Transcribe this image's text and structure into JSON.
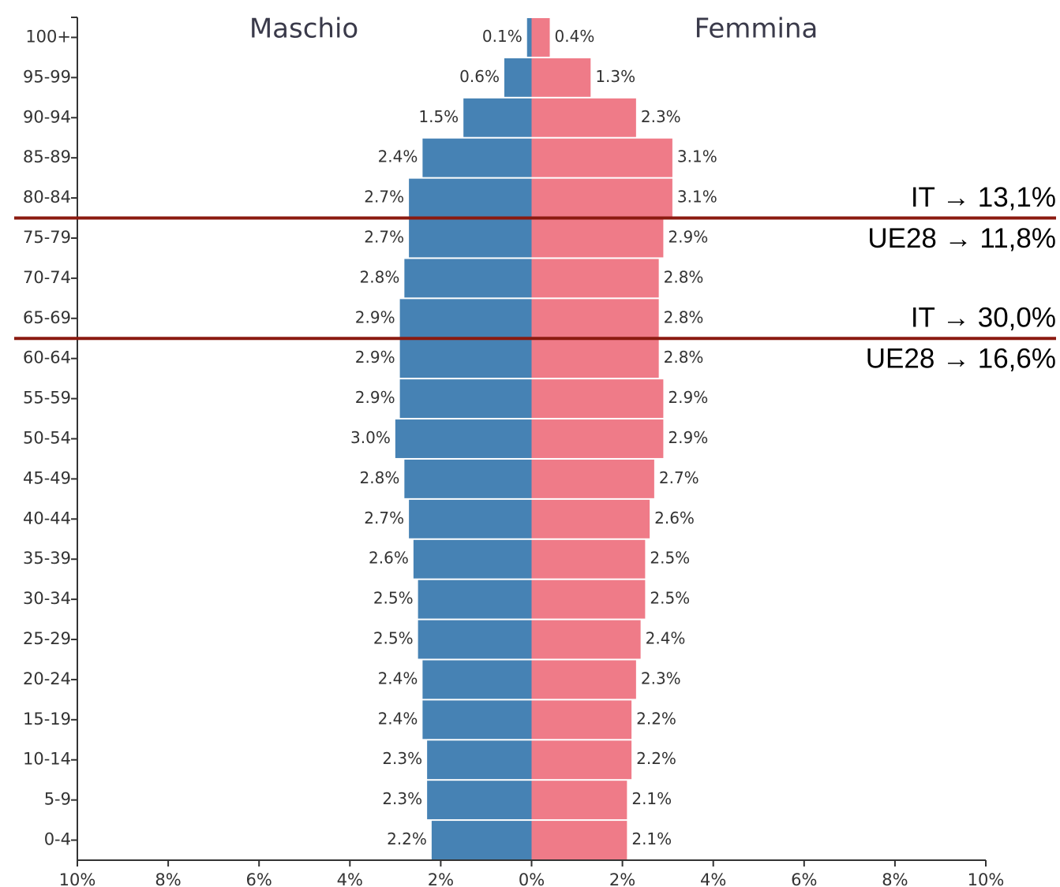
{
  "chart_data": {
    "type": "pyramid",
    "categories": [
      "100+",
      "95-99",
      "90-94",
      "85-89",
      "80-84",
      "75-79",
      "70-74",
      "65-69",
      "60-64",
      "55-59",
      "50-54",
      "45-49",
      "40-44",
      "35-39",
      "30-34",
      "25-29",
      "20-24",
      "15-19",
      "10-14",
      "5-9",
      "0-4"
    ],
    "series": [
      {
        "name": "Maschio",
        "color": "#4682b4",
        "side": "left",
        "values": [
          0.1,
          0.6,
          1.5,
          2.4,
          2.7,
          2.7,
          2.8,
          2.9,
          2.9,
          2.9,
          3.0,
          2.8,
          2.7,
          2.6,
          2.5,
          2.5,
          2.4,
          2.4,
          2.3,
          2.3,
          2.2
        ],
        "value_labels": [
          "0.1%",
          "0.6%",
          "1.5%",
          "2.4%",
          "2.7%",
          "2.7%",
          "2.8%",
          "2.9%",
          "2.9%",
          "2.9%",
          "3.0%",
          "2.8%",
          "2.7%",
          "2.6%",
          "2.5%",
          "2.5%",
          "2.4%",
          "2.4%",
          "2.3%",
          "2.3%",
          "2.2%"
        ]
      },
      {
        "name": "Femmina",
        "color": "#ef7b88",
        "side": "right",
        "values": [
          0.4,
          1.3,
          2.3,
          3.1,
          3.1,
          2.9,
          2.8,
          2.8,
          2.8,
          2.9,
          2.9,
          2.7,
          2.6,
          2.5,
          2.5,
          2.4,
          2.3,
          2.2,
          2.2,
          2.1,
          2.1
        ],
        "value_labels": [
          "0.4%",
          "1.3%",
          "2.3%",
          "3.1%",
          "3.1%",
          "2.9%",
          "2.8%",
          "2.8%",
          "2.8%",
          "2.9%",
          "2.9%",
          "2.7%",
          "2.6%",
          "2.5%",
          "2.5%",
          "2.4%",
          "2.3%",
          "2.2%",
          "2.2%",
          "2.1%",
          "2.1%"
        ]
      }
    ],
    "xlim": [
      -10,
      10
    ],
    "xticks": [
      {
        "value": -10,
        "label": "10%"
      },
      {
        "value": -8,
        "label": "8%"
      },
      {
        "value": -6,
        "label": "6%"
      },
      {
        "value": -4,
        "label": "4%"
      },
      {
        "value": -2,
        "label": "2%"
      },
      {
        "value": 0,
        "label": "0%"
      },
      {
        "value": 2,
        "label": "2%"
      },
      {
        "value": 4,
        "label": "4%"
      },
      {
        "value": 6,
        "label": "6%"
      },
      {
        "value": 8,
        "label": "8%"
      },
      {
        "value": 10,
        "label": "10%"
      }
    ],
    "annotations": [
      {
        "above": "IT → 13,1%",
        "below": "UE28 → 11,8%"
      },
      {
        "above": "IT → 30,0%",
        "below": "UE28 → 16,6%"
      }
    ]
  }
}
